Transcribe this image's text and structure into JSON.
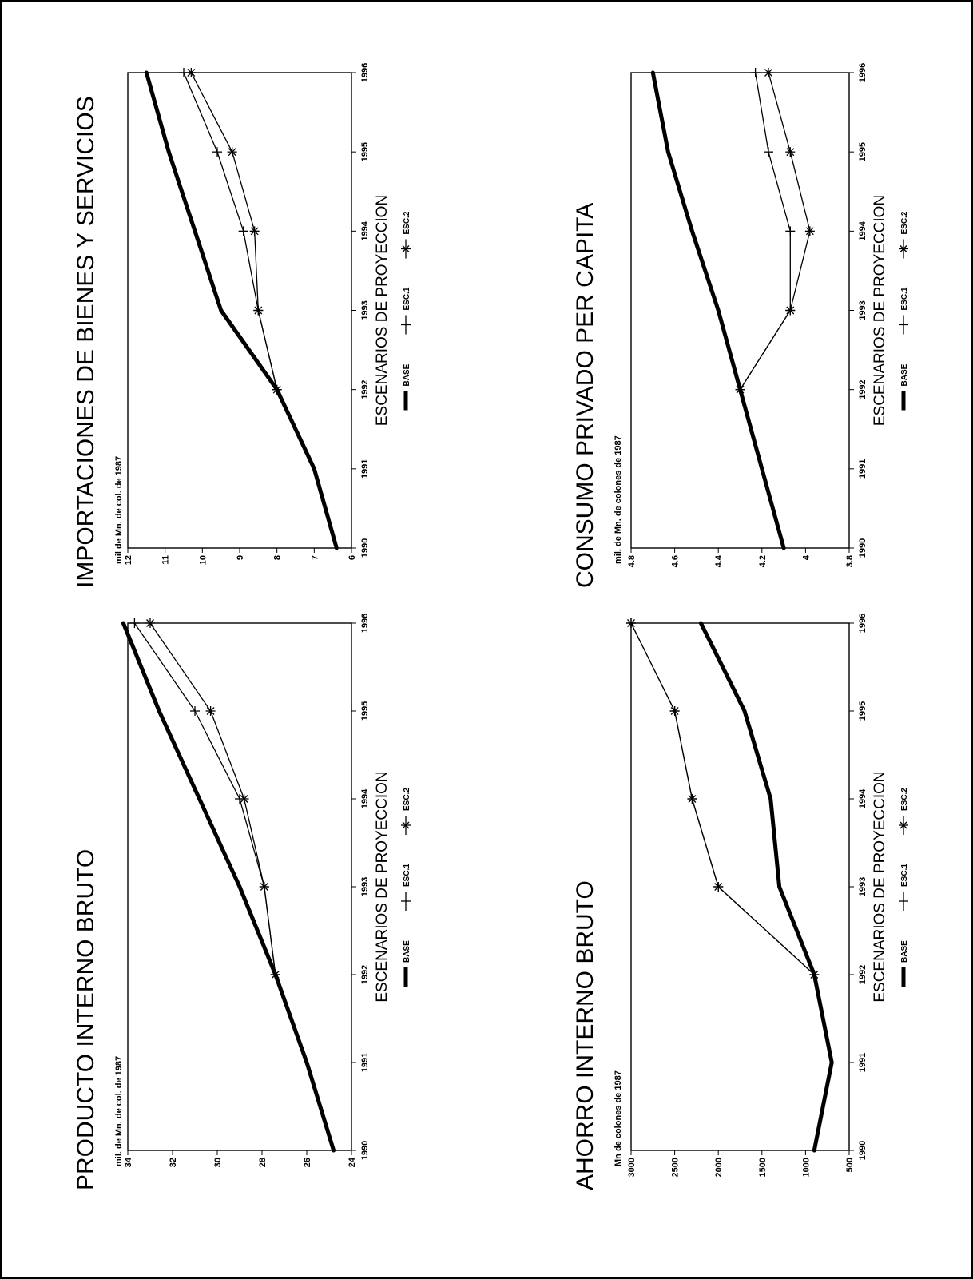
{
  "chart_data": [
    {
      "type": "line",
      "title": "PRODUCTO INTERNO BRUTO",
      "unit_label": "mil. de Mn. de col. de 1987",
      "xlabel": "ESCENARIOS DE PROYECCION",
      "x": [
        "1990",
        "1991",
        "1992",
        "1993",
        "1994",
        "1995",
        "1996"
      ],
      "ylim": [
        24,
        34
      ],
      "yticks": [
        "24",
        "26",
        "28",
        "30",
        "32",
        "34"
      ],
      "series": [
        {
          "name": "BASE",
          "values": [
            24.8,
            26.0,
            27.4,
            29.0,
            30.8,
            32.6,
            34.2
          ]
        },
        {
          "name": "ESC.1",
          "values": [
            24.8,
            26.0,
            27.4,
            27.9,
            29.0,
            31.0,
            33.7
          ]
        },
        {
          "name": "ESC.2",
          "values": [
            24.8,
            26.0,
            27.4,
            27.9,
            28.8,
            30.3,
            33.0
          ]
        }
      ]
    },
    {
      "type": "line",
      "title": "IMPORTACIONES DE BIENES Y SERVICIOS",
      "unit_label": "mil de Mn. de col. de 1987",
      "xlabel": "ESCENARIOS DE PROYECCION",
      "x": [
        "1990",
        "1991",
        "1992",
        "1993",
        "1994",
        "1995",
        "1996"
      ],
      "ylim": [
        6,
        12
      ],
      "yticks": [
        "6",
        "7",
        "8",
        "9",
        "10",
        "11",
        "12"
      ],
      "series": [
        {
          "name": "BASE",
          "values": [
            6.4,
            7.0,
            8.0,
            9.5,
            10.2,
            10.9,
            11.5
          ]
        },
        {
          "name": "ESC.1",
          "values": [
            6.4,
            7.0,
            8.0,
            8.5,
            8.9,
            9.6,
            10.5
          ]
        },
        {
          "name": "ESC.2",
          "values": [
            6.4,
            7.0,
            8.0,
            8.5,
            8.6,
            9.2,
            10.3
          ]
        }
      ]
    },
    {
      "type": "line",
      "title": "AHORRO INTERNO BRUTO",
      "unit_label": "Mn de colones de 1987",
      "xlabel": "ESCENARIOS DE PROYECCION",
      "x": [
        "1990",
        "1991",
        "1992",
        "1993",
        "1994",
        "1995",
        "1996"
      ],
      "ylim": [
        500,
        3000
      ],
      "yticks": [
        "500",
        "1000",
        "1500",
        "2000",
        "2500",
        "3000"
      ],
      "series": [
        {
          "name": "BASE",
          "values": [
            900,
            700,
            900,
            1300,
            1400,
            1700,
            2200
          ]
        },
        {
          "name": "ESC.1",
          "values": [
            900,
            700,
            900,
            2000,
            2300,
            2500,
            3000
          ]
        },
        {
          "name": "ESC.2",
          "values": [
            900,
            700,
            900,
            2000,
            2300,
            2500,
            3000
          ]
        }
      ]
    },
    {
      "type": "line",
      "title": "CONSUMO PRIVADO PER CAPITA",
      "unit_label": "mil. de Mn. de colones de 1987",
      "xlabel": "ESCENARIOS DE PROYECCION",
      "x": [
        "1990",
        "1991",
        "1992",
        "1993",
        "1994",
        "1995",
        "1996"
      ],
      "ylim": [
        3.8,
        4.8
      ],
      "yticks": [
        "3.8",
        "4",
        "4.2",
        "4.4",
        "4.6",
        "4.8"
      ],
      "series": [
        {
          "name": "BASE",
          "values": [
            4.1,
            4.2,
            4.3,
            4.4,
            4.52,
            4.63,
            4.7
          ]
        },
        {
          "name": "ESC.1",
          "values": [
            4.1,
            4.2,
            4.3,
            4.07,
            4.07,
            4.17,
            4.23
          ]
        },
        {
          "name": "ESC.2",
          "values": [
            4.1,
            4.2,
            4.3,
            4.07,
            3.98,
            4.07,
            4.17
          ]
        }
      ]
    }
  ]
}
